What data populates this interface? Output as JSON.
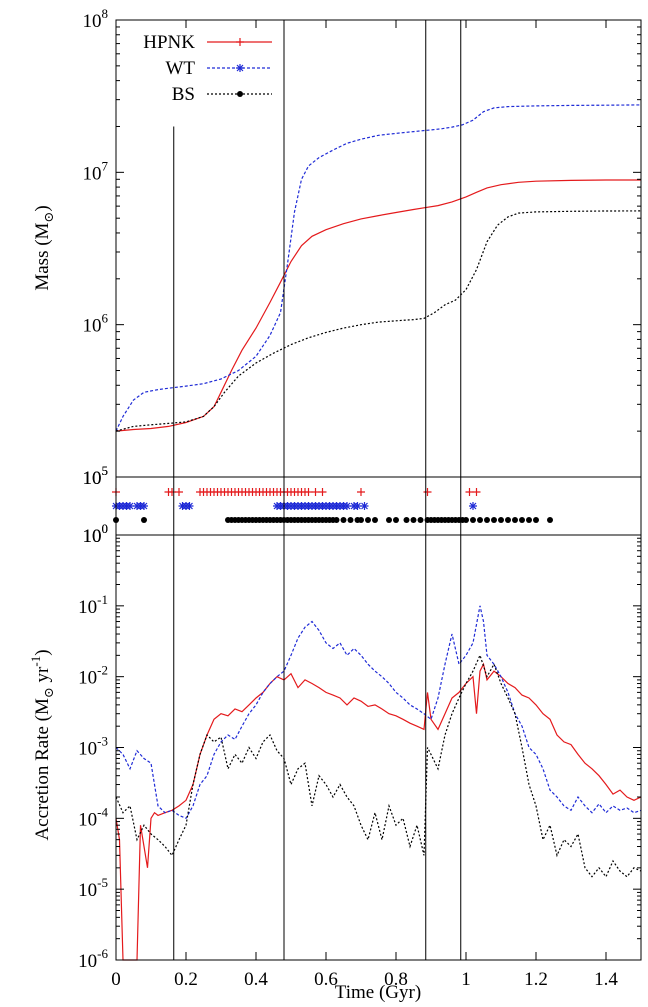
{
  "chart_data": [
    {
      "type": "line",
      "panel": "mass",
      "ylabel_prefix": "Mass (M",
      "ylabel_suffix": ")",
      "yscale": "log",
      "ylim": [
        100000,
        100000000
      ],
      "xlim": [
        0,
        1.5
      ],
      "yticks": [
        {
          "value": 100000,
          "base": "10",
          "exp": "5"
        },
        {
          "value": 1000000,
          "base": "10",
          "exp": "6"
        },
        {
          "value": 10000000,
          "base": "10",
          "exp": "7"
        },
        {
          "value": 100000000,
          "base": "10",
          "exp": "8"
        }
      ],
      "legend": {
        "position": "top-left"
      },
      "series": [
        {
          "name": "HPNK",
          "color": "#e41a1c",
          "dash": "",
          "marker": "+",
          "x": [
            0,
            0.05,
            0.1,
            0.15,
            0.2,
            0.25,
            0.28,
            0.3,
            0.33,
            0.36,
            0.4,
            0.44,
            0.47,
            0.5,
            0.53,
            0.56,
            0.6,
            0.65,
            0.7,
            0.75,
            0.8,
            0.85,
            0.88,
            0.92,
            0.96,
            1.0,
            1.03,
            1.06,
            1.1,
            1.15,
            1.2,
            1.3,
            1.4,
            1.5
          ],
          "y": [
            200000,
            205000,
            208000,
            215000,
            228000,
            250000,
            290000,
            360000,
            500000,
            680000,
            950000,
            1400000,
            1900000,
            2600000,
            3300000,
            3800000,
            4200000,
            4600000,
            4950000,
            5200000,
            5450000,
            5700000,
            5850000,
            6050000,
            6400000,
            6900000,
            7400000,
            7900000,
            8300000,
            8600000,
            8750000,
            8850000,
            8900000,
            8900000
          ]
        },
        {
          "name": "WT",
          "color": "#1f2bd6",
          "dash": "3,2",
          "marker": "*",
          "x": [
            0,
            0.02,
            0.05,
            0.08,
            0.12,
            0.16,
            0.2,
            0.25,
            0.3,
            0.35,
            0.4,
            0.44,
            0.47,
            0.49,
            0.51,
            0.53,
            0.55,
            0.58,
            0.62,
            0.66,
            0.7,
            0.75,
            0.8,
            0.85,
            0.9,
            0.93,
            0.96,
            0.99,
            1.02,
            1.05,
            1.08,
            1.12,
            1.2,
            1.3,
            1.4,
            1.5
          ],
          "y": [
            200000,
            250000,
            320000,
            360000,
            375000,
            385000,
            395000,
            410000,
            440000,
            500000,
            620000,
            850000,
            1200000,
            2500000,
            5500000,
            9000000,
            11000000,
            12500000,
            14000000,
            15500000,
            16500000,
            17500000,
            18000000,
            18500000,
            19000000,
            19300000,
            19800000,
            20500000,
            22000000,
            25000000,
            26500000,
            27000000,
            27300000,
            27500000,
            27600000,
            27700000
          ]
        },
        {
          "name": "BS",
          "color": "#000000",
          "dash": "2,2",
          "marker": "•",
          "x": [
            0,
            0.05,
            0.1,
            0.15,
            0.2,
            0.25,
            0.28,
            0.31,
            0.35,
            0.4,
            0.45,
            0.5,
            0.55,
            0.6,
            0.65,
            0.7,
            0.75,
            0.8,
            0.85,
            0.88,
            0.91,
            0.94,
            0.97,
            1.0,
            1.03,
            1.06,
            1.09,
            1.12,
            1.15,
            1.2,
            1.3,
            1.4,
            1.5
          ],
          "y": [
            200000,
            215000,
            220000,
            225000,
            230000,
            250000,
            290000,
            360000,
            460000,
            560000,
            650000,
            740000,
            820000,
            890000,
            950000,
            1000000,
            1040000,
            1060000,
            1080000,
            1100000,
            1200000,
            1350000,
            1450000,
            1700000,
            2300000,
            3500000,
            4500000,
            5100000,
            5400000,
            5500000,
            5550000,
            5570000,
            5580000
          ]
        }
      ]
    },
    {
      "type": "scatter",
      "panel": "events",
      "ylim": [
        1,
        100000
      ],
      "xlim": [
        0,
        1.5
      ],
      "series": [
        {
          "name": "HPNK",
          "color": "#e41a1c",
          "marker": "+",
          "x": [
            0,
            0.15,
            0.16,
            0.18,
            0.24,
            0.25,
            0.26,
            0.27,
            0.28,
            0.29,
            0.3,
            0.31,
            0.32,
            0.33,
            0.34,
            0.35,
            0.36,
            0.37,
            0.38,
            0.39,
            0.4,
            0.41,
            0.42,
            0.43,
            0.44,
            0.45,
            0.46,
            0.47,
            0.48,
            0.49,
            0.5,
            0.51,
            0.52,
            0.53,
            0.54,
            0.55,
            0.57,
            0.59,
            0.7,
            0.89,
            1.01,
            1.03
          ]
        },
        {
          "name": "WT",
          "color": "#1f2bd6",
          "marker": "*",
          "x": [
            0,
            0.01,
            0.02,
            0.03,
            0.04,
            0.06,
            0.07,
            0.08,
            0.19,
            0.2,
            0.21,
            0.46,
            0.47,
            0.48,
            0.49,
            0.5,
            0.51,
            0.52,
            0.53,
            0.54,
            0.55,
            0.56,
            0.57,
            0.58,
            0.59,
            0.6,
            0.61,
            0.62,
            0.63,
            0.64,
            0.65,
            0.66,
            0.68,
            0.69,
            0.71,
            1.02
          ]
        },
        {
          "name": "BS",
          "color": "#000000",
          "marker": "•",
          "x": [
            0,
            0.08,
            0.32,
            0.33,
            0.34,
            0.35,
            0.36,
            0.37,
            0.38,
            0.39,
            0.4,
            0.41,
            0.42,
            0.43,
            0.44,
            0.45,
            0.46,
            0.47,
            0.48,
            0.49,
            0.5,
            0.51,
            0.52,
            0.53,
            0.54,
            0.55,
            0.56,
            0.57,
            0.58,
            0.59,
            0.6,
            0.61,
            0.62,
            0.63,
            0.65,
            0.67,
            0.69,
            0.7,
            0.72,
            0.74,
            0.78,
            0.8,
            0.83,
            0.85,
            0.87,
            0.89,
            0.9,
            0.91,
            0.92,
            0.93,
            0.94,
            0.95,
            0.96,
            0.97,
            0.98,
            0.99,
            1.0,
            1.02,
            1.04,
            1.06,
            1.08,
            1.1,
            1.12,
            1.14,
            1.16,
            1.18,
            1.2,
            1.24
          ]
        }
      ],
      "yticks": [
        {
          "value": 1,
          "base": "10",
          "exp": "0"
        },
        {
          "value": 100000,
          "base": "10",
          "exp": "5"
        }
      ]
    },
    {
      "type": "line",
      "panel": "accretion",
      "ylabel_prefix": "Accretion Rate (M",
      "ylabel_suffix": " yr",
      "ylabel_exp": "-1",
      "ylabel_close": ")",
      "xlabel": "Time (Gyr)",
      "yscale": "log",
      "ylim": [
        1e-06,
        1
      ],
      "xlim": [
        0,
        1.5
      ],
      "yticks": [
        {
          "value": 1e-06,
          "base": "10",
          "exp": "-6"
        },
        {
          "value": 1e-05,
          "base": "10",
          "exp": "-5"
        },
        {
          "value": 0.0001,
          "base": "10",
          "exp": "-4"
        },
        {
          "value": 0.001,
          "base": "10",
          "exp": "-3"
        },
        {
          "value": 0.01,
          "base": "10",
          "exp": "-2"
        },
        {
          "value": 0.1,
          "base": "10",
          "exp": "-1"
        },
        {
          "value": 1,
          "base": "10",
          "exp": "0"
        }
      ],
      "xticks": [
        "0",
        "0.2",
        "0.4",
        "0.6",
        "0.8",
        "1",
        "1.2",
        "1.4"
      ],
      "series": [
        {
          "name": "HPNK",
          "color": "#e41a1c",
          "dash": "",
          "x": [
            0,
            0.01,
            0.02,
            0.03,
            0.04,
            0.05,
            0.06,
            0.07,
            0.08,
            0.09,
            0.1,
            0.11,
            0.12,
            0.14,
            0.16,
            0.18,
            0.2,
            0.22,
            0.24,
            0.26,
            0.28,
            0.3,
            0.32,
            0.34,
            0.36,
            0.38,
            0.4,
            0.42,
            0.44,
            0.46,
            0.48,
            0.5,
            0.52,
            0.54,
            0.56,
            0.58,
            0.6,
            0.62,
            0.64,
            0.66,
            0.68,
            0.7,
            0.72,
            0.74,
            0.76,
            0.78,
            0.8,
            0.82,
            0.84,
            0.86,
            0.88,
            0.89,
            0.9,
            0.92,
            0.94,
            0.96,
            0.98,
            1.0,
            1.02,
            1.03,
            1.04,
            1.05,
            1.06,
            1.08,
            1.1,
            1.12,
            1.14,
            1.16,
            1.18,
            1.2,
            1.22,
            1.24,
            1.26,
            1.28,
            1.3,
            1.32,
            1.34,
            1.36,
            1.38,
            1.4,
            1.42,
            1.44,
            1.46,
            1.48,
            1.5
          ],
          "y": [
            0.0001,
            5e-05,
            1e-06,
            1e-06,
            1e-06,
            1e-06,
            1e-06,
            8e-05,
            4e-05,
            2e-05,
            0.0001,
            0.00012,
            0.00011,
            0.00012,
            0.00013,
            0.00015,
            0.00018,
            0.0003,
            0.0008,
            0.0015,
            0.0025,
            0.003,
            0.0028,
            0.0035,
            0.0032,
            0.004,
            0.005,
            0.006,
            0.008,
            0.01,
            0.009,
            0.011,
            0.007,
            0.009,
            0.008,
            0.007,
            0.006,
            0.0055,
            0.005,
            0.004,
            0.005,
            0.0045,
            0.0038,
            0.004,
            0.0035,
            0.003,
            0.0028,
            0.0025,
            0.0022,
            0.002,
            0.0018,
            0.006,
            0.0025,
            0.0018,
            0.003,
            0.005,
            0.006,
            0.008,
            0.01,
            0.003,
            0.012,
            0.015,
            0.009,
            0.012,
            0.01,
            0.008,
            0.007,
            0.0055,
            0.005,
            0.004,
            0.003,
            0.0025,
            0.0015,
            0.0012,
            0.0011,
            0.0008,
            0.0006,
            0.0005,
            0.0004,
            0.0003,
            0.00022,
            0.00025,
            0.0002,
            0.00018,
            0.0002
          ]
        },
        {
          "name": "WT",
          "color": "#1f2bd6",
          "dash": "3,2",
          "x": [
            0,
            0.02,
            0.04,
            0.06,
            0.08,
            0.1,
            0.12,
            0.14,
            0.16,
            0.18,
            0.2,
            0.22,
            0.24,
            0.26,
            0.28,
            0.3,
            0.32,
            0.34,
            0.36,
            0.38,
            0.4,
            0.42,
            0.44,
            0.46,
            0.48,
            0.5,
            0.52,
            0.54,
            0.56,
            0.58,
            0.6,
            0.62,
            0.64,
            0.66,
            0.68,
            0.7,
            0.72,
            0.74,
            0.76,
            0.78,
            0.8,
            0.82,
            0.84,
            0.86,
            0.88,
            0.9,
            0.92,
            0.94,
            0.96,
            0.98,
            1.0,
            1.02,
            1.04,
            1.05,
            1.06,
            1.08,
            1.1,
            1.12,
            1.14,
            1.16,
            1.18,
            1.2,
            1.22,
            1.24,
            1.26,
            1.28,
            1.3,
            1.32,
            1.34,
            1.36,
            1.38,
            1.4,
            1.42,
            1.44,
            1.46,
            1.48,
            1.5
          ],
          "y": [
            0.001,
            0.0008,
            0.0005,
            0.0009,
            0.0007,
            0.0006,
            0.00015,
            0.00012,
            0.00013,
            0.00011,
            0.0001,
            0.00015,
            0.0003,
            0.0004,
            0.0008,
            0.0012,
            0.0015,
            0.0013,
            0.002,
            0.003,
            0.004,
            0.006,
            0.008,
            0.01,
            0.012,
            0.02,
            0.035,
            0.05,
            0.06,
            0.045,
            0.03,
            0.025,
            0.03,
            0.02,
            0.025,
            0.02,
            0.015,
            0.012,
            0.01,
            0.008,
            0.006,
            0.005,
            0.004,
            0.0035,
            0.003,
            0.0025,
            0.005,
            0.015,
            0.04,
            0.015,
            0.02,
            0.03,
            0.1,
            0.06,
            0.02,
            0.015,
            0.01,
            0.006,
            0.003,
            0.002,
            0.001,
            0.0008,
            0.0005,
            0.00025,
            0.0002,
            0.00015,
            0.00013,
            0.0002,
            0.00015,
            0.00012,
            0.00016,
            0.00012,
            0.00015,
            0.00013,
            0.00014,
            0.00012,
            0.00013
          ]
        },
        {
          "name": "BS",
          "color": "#000000",
          "dash": "2,2",
          "x": [
            0,
            0.02,
            0.04,
            0.06,
            0.08,
            0.1,
            0.12,
            0.14,
            0.16,
            0.18,
            0.2,
            0.22,
            0.24,
            0.26,
            0.28,
            0.3,
            0.32,
            0.34,
            0.36,
            0.38,
            0.4,
            0.42,
            0.44,
            0.46,
            0.48,
            0.5,
            0.52,
            0.54,
            0.56,
            0.58,
            0.6,
            0.62,
            0.64,
            0.66,
            0.68,
            0.7,
            0.72,
            0.74,
            0.76,
            0.78,
            0.8,
            0.82,
            0.84,
            0.86,
            0.88,
            0.89,
            0.9,
            0.92,
            0.94,
            0.96,
            0.98,
            1.0,
            1.02,
            1.04,
            1.06,
            1.08,
            1.1,
            1.12,
            1.14,
            1.16,
            1.18,
            1.2,
            1.22,
            1.24,
            1.26,
            1.28,
            1.3,
            1.32,
            1.34,
            1.36,
            1.38,
            1.4,
            1.42,
            1.44,
            1.46,
            1.48,
            1.5
          ],
          "y": [
            0.0002,
            0.00012,
            0.00015,
            5e-05,
            8e-05,
            6e-05,
            5e-05,
            4e-05,
            3e-05,
            5e-05,
            8e-05,
            0.0003,
            0.0008,
            0.0015,
            0.0012,
            0.0014,
            0.0005,
            0.0008,
            0.0006,
            0.001,
            0.0007,
            0.0012,
            0.0015,
            0.0009,
            0.0007,
            0.0003,
            0.0005,
            0.0006,
            0.00015,
            0.0004,
            0.0003,
            0.0002,
            0.0003,
            0.0002,
            0.00015,
            8e-05,
            5e-05,
            0.00012,
            5e-05,
            0.00015,
            8e-05,
            0.0001,
            4e-05,
            8e-05,
            3e-05,
            0.001,
            0.0008,
            0.0005,
            0.0015,
            0.003,
            0.005,
            0.008,
            0.012,
            0.02,
            0.01,
            0.015,
            0.008,
            0.005,
            0.003,
            0.001,
            0.0003,
            0.00015,
            5e-05,
            8e-05,
            3e-05,
            5e-05,
            4e-05,
            6e-05,
            2e-05,
            1.5e-05,
            2e-05,
            1.5e-05,
            2.5e-05,
            1.8e-05,
            1.5e-05,
            2e-05,
            1.8e-05
          ]
        }
      ]
    }
  ],
  "vlines": [
    0.165,
    0.48,
    0.885,
    0.985
  ],
  "vline_mass_top": 20000000,
  "sun_symbol": "⊙"
}
